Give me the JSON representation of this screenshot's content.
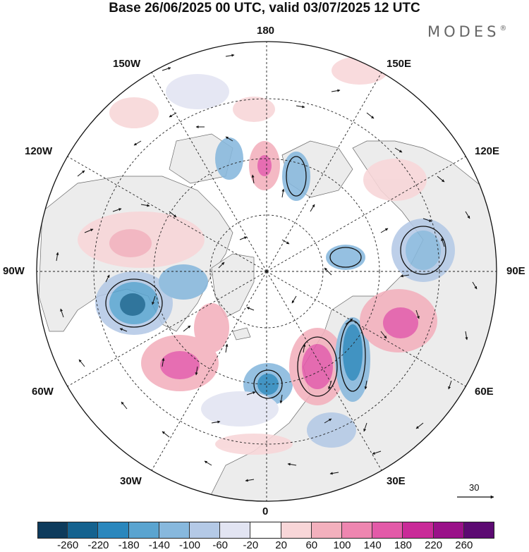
{
  "title": "Base 26/06/2025 00 UTC, valid 03/07/2025 12 UTC",
  "brand": {
    "name": "MODES",
    "mark": "®"
  },
  "longitude_labels": {
    "lon_180": "180",
    "lon_150e": "150E",
    "lon_120e": "120E",
    "lon_90e": "90E",
    "lon_60e": "60E",
    "lon_30e": "30E",
    "lon_0": "0",
    "lon_30w": "30W",
    "lon_60w": "60W",
    "lon_90w": "90W",
    "lon_120w": "120W",
    "lon_150w": "150W"
  },
  "wind_reference": {
    "value": "30"
  },
  "colorbar": {
    "ticks": [
      "-260",
      "-220",
      "-180",
      "-140",
      "-100",
      "-60",
      "-20",
      "20",
      "60",
      "100",
      "140",
      "180",
      "220",
      "260"
    ],
    "colors": [
      "#0d3b5c",
      "#14628f",
      "#2a87bd",
      "#5aa4d0",
      "#87b8dd",
      "#b4c9e6",
      "#e2e4f2",
      "#ffffff",
      "#f8d6d8",
      "#f3b0bd",
      "#ee86b0",
      "#e35aa8",
      "#c92a98",
      "#9a1189",
      "#5c0a72"
    ]
  },
  "style": {
    "ocean": "#ffffff",
    "land": "#ececec",
    "coast": "#6a6a6a",
    "grid": "#222222"
  }
}
